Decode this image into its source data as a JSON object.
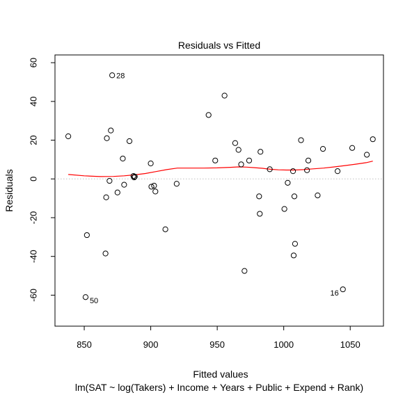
{
  "chart_data": {
    "type": "scatter",
    "title": "Residuals vs Fitted",
    "xlabel": "Fitted values",
    "sublabel": "lm(SAT ~ log(Takers) + Income + Years + Public + Expend + Rank)",
    "ylabel": "Residuals",
    "xlim": [
      828,
      1075
    ],
    "ylim": [
      -76,
      64
    ],
    "xticks": [
      850,
      900,
      950,
      1000,
      1050
    ],
    "yticks": [
      -60,
      -40,
      -20,
      0,
      20,
      40,
      60
    ],
    "xtick_labels": [
      "850",
      "900",
      "950",
      "1000",
      "1050"
    ],
    "ytick_labels": [
      "-60",
      "-40",
      "-20",
      "0",
      "20",
      "40",
      "60"
    ],
    "reference_line": {
      "y": 0,
      "style": "dotted",
      "color": "#bfbfbf"
    },
    "points": [
      {
        "x": 838,
        "y": 22
      },
      {
        "x": 851,
        "y": -61,
        "label": "50"
      },
      {
        "x": 852,
        "y": -29
      },
      {
        "x": 866,
        "y": -38.5
      },
      {
        "x": 866.5,
        "y": -9.5
      },
      {
        "x": 867,
        "y": 21
      },
      {
        "x": 869,
        "y": -1
      },
      {
        "x": 870,
        "y": 25
      },
      {
        "x": 871,
        "y": 53.5,
        "label": "28"
      },
      {
        "x": 875,
        "y": -7
      },
      {
        "x": 879,
        "y": 10.5
      },
      {
        "x": 880,
        "y": -3
      },
      {
        "x": 884,
        "y": 19.5
      },
      {
        "x": 887,
        "y": 1.5
      },
      {
        "x": 887.5,
        "y": 0.8
      },
      {
        "x": 888,
        "y": 1.2
      },
      {
        "x": 900,
        "y": 8
      },
      {
        "x": 900.5,
        "y": -4
      },
      {
        "x": 902.5,
        "y": -3.5
      },
      {
        "x": 903.5,
        "y": -6.5
      },
      {
        "x": 911,
        "y": -26
      },
      {
        "x": 919.5,
        "y": -2.5
      },
      {
        "x": 943.5,
        "y": 33
      },
      {
        "x": 948.5,
        "y": 9.5
      },
      {
        "x": 955.5,
        "y": 43
      },
      {
        "x": 963.5,
        "y": 18.5
      },
      {
        "x": 966,
        "y": 15
      },
      {
        "x": 968,
        "y": 7.5
      },
      {
        "x": 970.5,
        "y": -47.5
      },
      {
        "x": 974,
        "y": 9.5
      },
      {
        "x": 981.5,
        "y": -9
      },
      {
        "x": 982,
        "y": -18
      },
      {
        "x": 982.5,
        "y": 14
      },
      {
        "x": 989.5,
        "y": 5
      },
      {
        "x": 1000.5,
        "y": -15.5
      },
      {
        "x": 1003,
        "y": -2
      },
      {
        "x": 1007,
        "y": 4
      },
      {
        "x": 1007.5,
        "y": -39.5
      },
      {
        "x": 1008,
        "y": -9
      },
      {
        "x": 1008.5,
        "y": -33.5
      },
      {
        "x": 1013,
        "y": 20
      },
      {
        "x": 1017.5,
        "y": 4.5
      },
      {
        "x": 1018.5,
        "y": 9.5
      },
      {
        "x": 1025.5,
        "y": -8.5
      },
      {
        "x": 1029.5,
        "y": 15.5
      },
      {
        "x": 1040.5,
        "y": 4
      },
      {
        "x": 1044.5,
        "y": -57,
        "label": "16"
      },
      {
        "x": 1051.5,
        "y": 16
      },
      {
        "x": 1062.5,
        "y": 12.5
      },
      {
        "x": 1067,
        "y": 20.5
      }
    ],
    "smooth": {
      "color": "#ff0000",
      "x": [
        838,
        850,
        862,
        872,
        880,
        888,
        896,
        904,
        912,
        920,
        930,
        940,
        950,
        960,
        966,
        972,
        978,
        984,
        990,
        996,
        1002,
        1008,
        1015,
        1022,
        1030,
        1038,
        1046,
        1054,
        1062,
        1067
      ],
      "y": [
        2.3,
        1.6,
        1.2,
        1.3,
        1.6,
        2.1,
        2.8,
        3.8,
        4.8,
        5.6,
        5.6,
        5.6,
        5.7,
        6.0,
        6.2,
        6.1,
        5.8,
        5.5,
        5.0,
        4.7,
        4.6,
        4.6,
        4.8,
        5.2,
        5.6,
        6.2,
        6.9,
        7.6,
        8.4,
        9.2
      ]
    }
  }
}
